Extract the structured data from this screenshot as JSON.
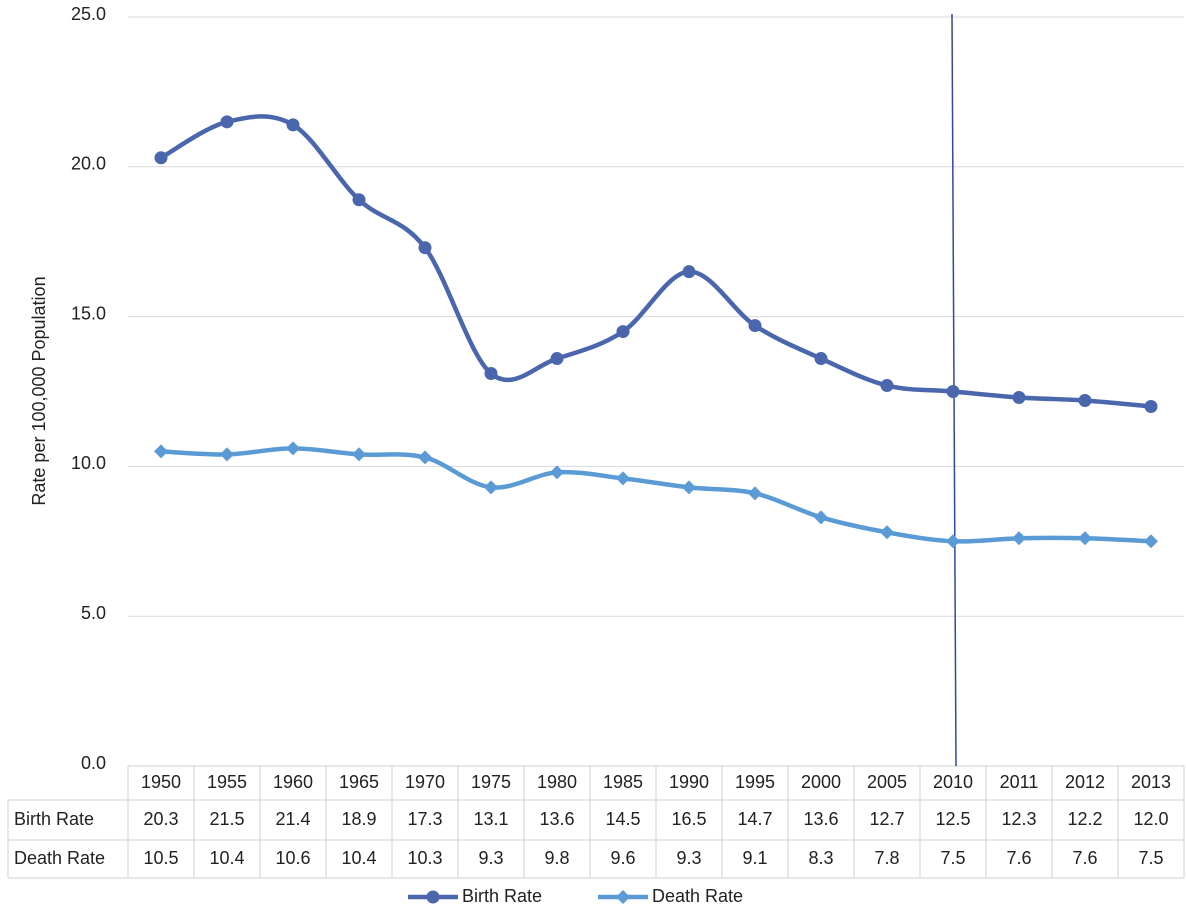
{
  "chart_data": {
    "type": "line",
    "y_label": "Rate per 100,000 Population",
    "categories": [
      "1950",
      "1955",
      "1960",
      "1965",
      "1970",
      "1975",
      "1980",
      "1985",
      "1990",
      "1995",
      "2000",
      "2005",
      "2010",
      "2011",
      "2012",
      "2013"
    ],
    "series": [
      {
        "name": "Birth Rate",
        "color": "#4a66ac",
        "marker": "circle",
        "values": [
          20.3,
          21.5,
          21.4,
          18.9,
          17.3,
          13.1,
          13.6,
          14.5,
          16.5,
          14.7,
          13.6,
          12.7,
          12.5,
          12.3,
          12.2,
          12.0
        ],
        "value_labels": [
          "20.3",
          "21.5",
          "21.4",
          "18.9",
          "17.3",
          "13.1",
          "13.6",
          "14.5",
          "16.5",
          "14.7",
          "13.6",
          "12.7",
          "12.5",
          "12.3",
          "12.2",
          "12.0"
        ]
      },
      {
        "name": "Death Rate",
        "color": "#5b9bd5",
        "marker": "diamond",
        "values": [
          10.5,
          10.4,
          10.6,
          10.4,
          10.3,
          9.3,
          9.8,
          9.6,
          9.3,
          9.1,
          8.3,
          7.8,
          7.5,
          7.6,
          7.6,
          7.5
        ],
        "value_labels": [
          "10.5",
          "10.4",
          "10.6",
          "10.4",
          "10.3",
          "9.3",
          "9.8",
          "9.6",
          "9.3",
          "9.1",
          "8.3",
          "7.8",
          "7.5",
          "7.6",
          "7.6",
          "7.5"
        ]
      }
    ],
    "ylim": [
      0,
      25
    ],
    "yticks": [
      {
        "value": 0,
        "label": "0.0"
      },
      {
        "value": 5,
        "label": "5.0"
      },
      {
        "value": 10,
        "label": "10.0"
      },
      {
        "value": 15,
        "label": "15.0"
      },
      {
        "value": 20,
        "label": "20.0"
      },
      {
        "value": 25,
        "label": "25.0"
      }
    ],
    "grid": true,
    "smooth": true,
    "legend": "bottom"
  }
}
